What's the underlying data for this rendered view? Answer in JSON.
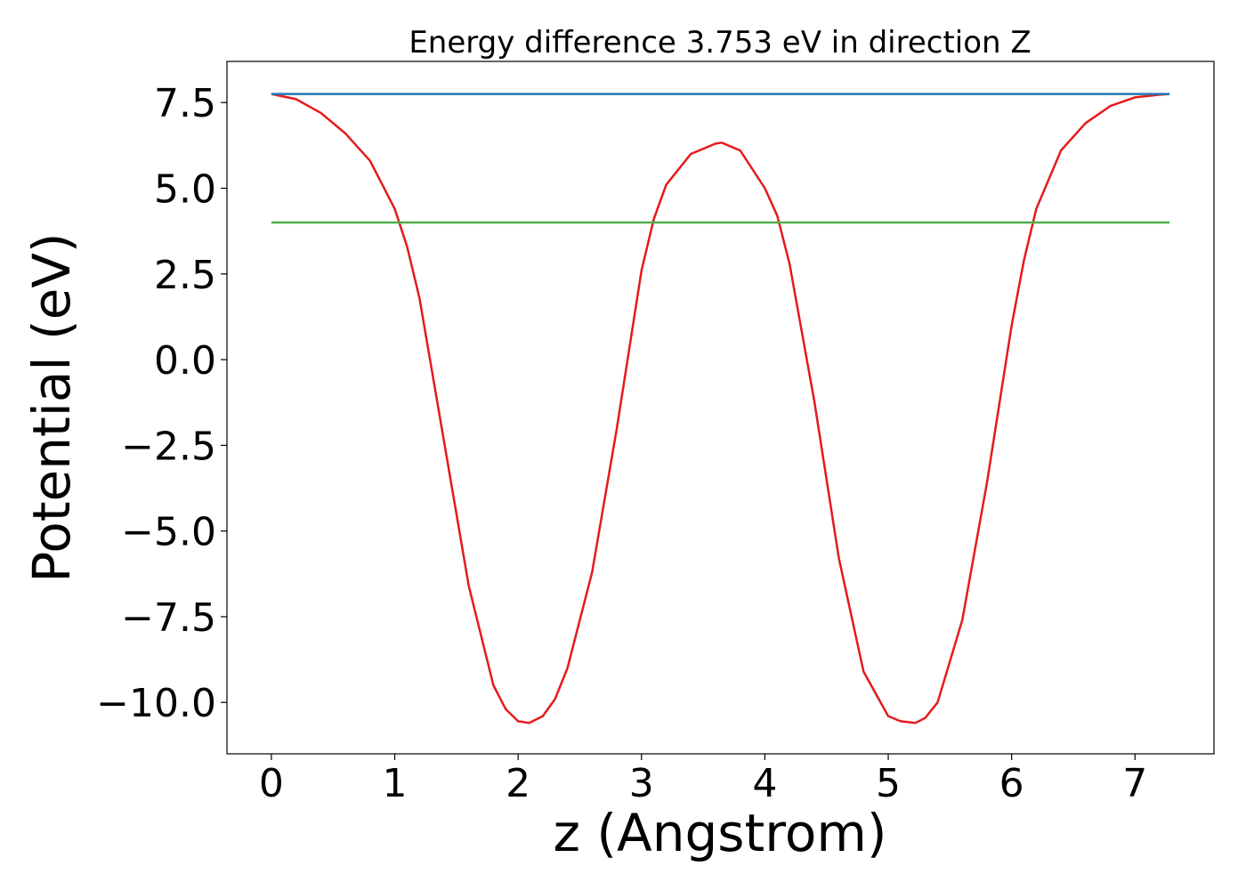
{
  "chart_data": {
    "type": "line",
    "title": "Energy difference 3.753 eV in direction Z",
    "xlabel": "z (Angstrom)",
    "ylabel": "Potential (eV)",
    "xlim": [
      -0.36,
      7.64
    ],
    "ylim": [
      -11.5,
      8.7
    ],
    "x_ticks": [
      0,
      1,
      2,
      3,
      4,
      5,
      6,
      7
    ],
    "x_tick_labels": [
      "0",
      "1",
      "2",
      "3",
      "4",
      "5",
      "6",
      "7"
    ],
    "y_ticks": [
      7.5,
      5.0,
      2.5,
      0.0,
      -2.5,
      -5.0,
      -7.5,
      -10.0
    ],
    "y_tick_labels": [
      "7.5",
      "5.0",
      "2.5",
      "0.0",
      "−2.5",
      "−5.0",
      "−7.5",
      "−10.0"
    ],
    "grid": false,
    "legend": "none",
    "series": [
      {
        "color": "#e41a1c",
        "x": [
          0.0,
          0.2,
          0.4,
          0.6,
          0.8,
          1.0,
          1.1,
          1.2,
          1.4,
          1.6,
          1.8,
          1.9,
          2.0,
          2.09,
          2.2,
          2.3,
          2.4,
          2.6,
          2.8,
          3.0,
          3.1,
          3.2,
          3.4,
          3.6,
          3.65,
          3.8,
          4.0,
          4.1,
          4.2,
          4.4,
          4.6,
          4.8,
          5.0,
          5.1,
          5.22,
          5.3,
          5.4,
          5.6,
          5.8,
          6.0,
          6.1,
          6.2,
          6.4,
          6.6,
          6.8,
          7.0,
          7.2,
          7.28
        ],
        "y": [
          7.75,
          7.6,
          7.2,
          6.6,
          5.8,
          4.4,
          3.3,
          1.8,
          -2.4,
          -6.6,
          -9.5,
          -10.2,
          -10.55,
          -10.6,
          -10.4,
          -9.9,
          -9.0,
          -6.2,
          -2.0,
          2.6,
          4.1,
          5.1,
          6.0,
          6.3,
          6.33,
          6.1,
          5.0,
          4.2,
          2.8,
          -1.2,
          -5.8,
          -9.1,
          -10.4,
          -10.55,
          -10.6,
          -10.45,
          -10.0,
          -7.6,
          -3.6,
          1.0,
          2.9,
          4.4,
          6.1,
          6.9,
          7.4,
          7.65,
          7.73,
          7.75
        ]
      },
      {
        "color": "#1f77b4",
        "x": [
          0.0,
          7.28
        ],
        "y": [
          7.75,
          7.75
        ]
      },
      {
        "color": "#4daf4a",
        "x": [
          0.0,
          7.28
        ],
        "y": [
          4.0,
          4.0
        ]
      }
    ]
  }
}
